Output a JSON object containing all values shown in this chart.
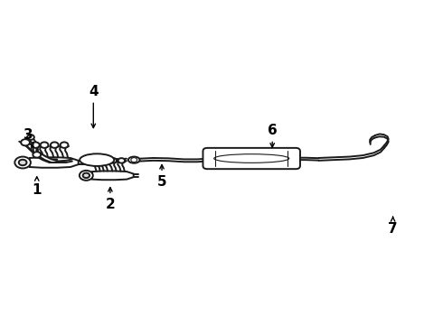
{
  "background_color": "#ffffff",
  "line_color": "#1a1a1a",
  "line_width": 1.4,
  "label_fontsize": 11,
  "figsize": [
    4.9,
    3.6
  ],
  "dpi": 100,
  "label_positions": {
    "1": {
      "text": [
        0.082,
        0.415
      ],
      "arrow": [
        0.082,
        0.468
      ]
    },
    "2": {
      "text": [
        0.248,
        0.37
      ],
      "arrow": [
        0.248,
        0.435
      ]
    },
    "3": {
      "text": [
        0.062,
        0.585
      ],
      "arrow": [
        0.075,
        0.545
      ]
    },
    "4": {
      "text": [
        0.21,
        0.72
      ],
      "arrow": [
        0.21,
        0.595
      ]
    },
    "5": {
      "text": [
        0.365,
        0.44
      ],
      "arrow": [
        0.365,
        0.505
      ]
    },
    "6": {
      "text": [
        0.615,
        0.6
      ],
      "arrow": [
        0.615,
        0.535
      ]
    },
    "7": {
      "text": [
        0.888,
        0.295
      ],
      "arrow": [
        0.888,
        0.335
      ]
    }
  }
}
